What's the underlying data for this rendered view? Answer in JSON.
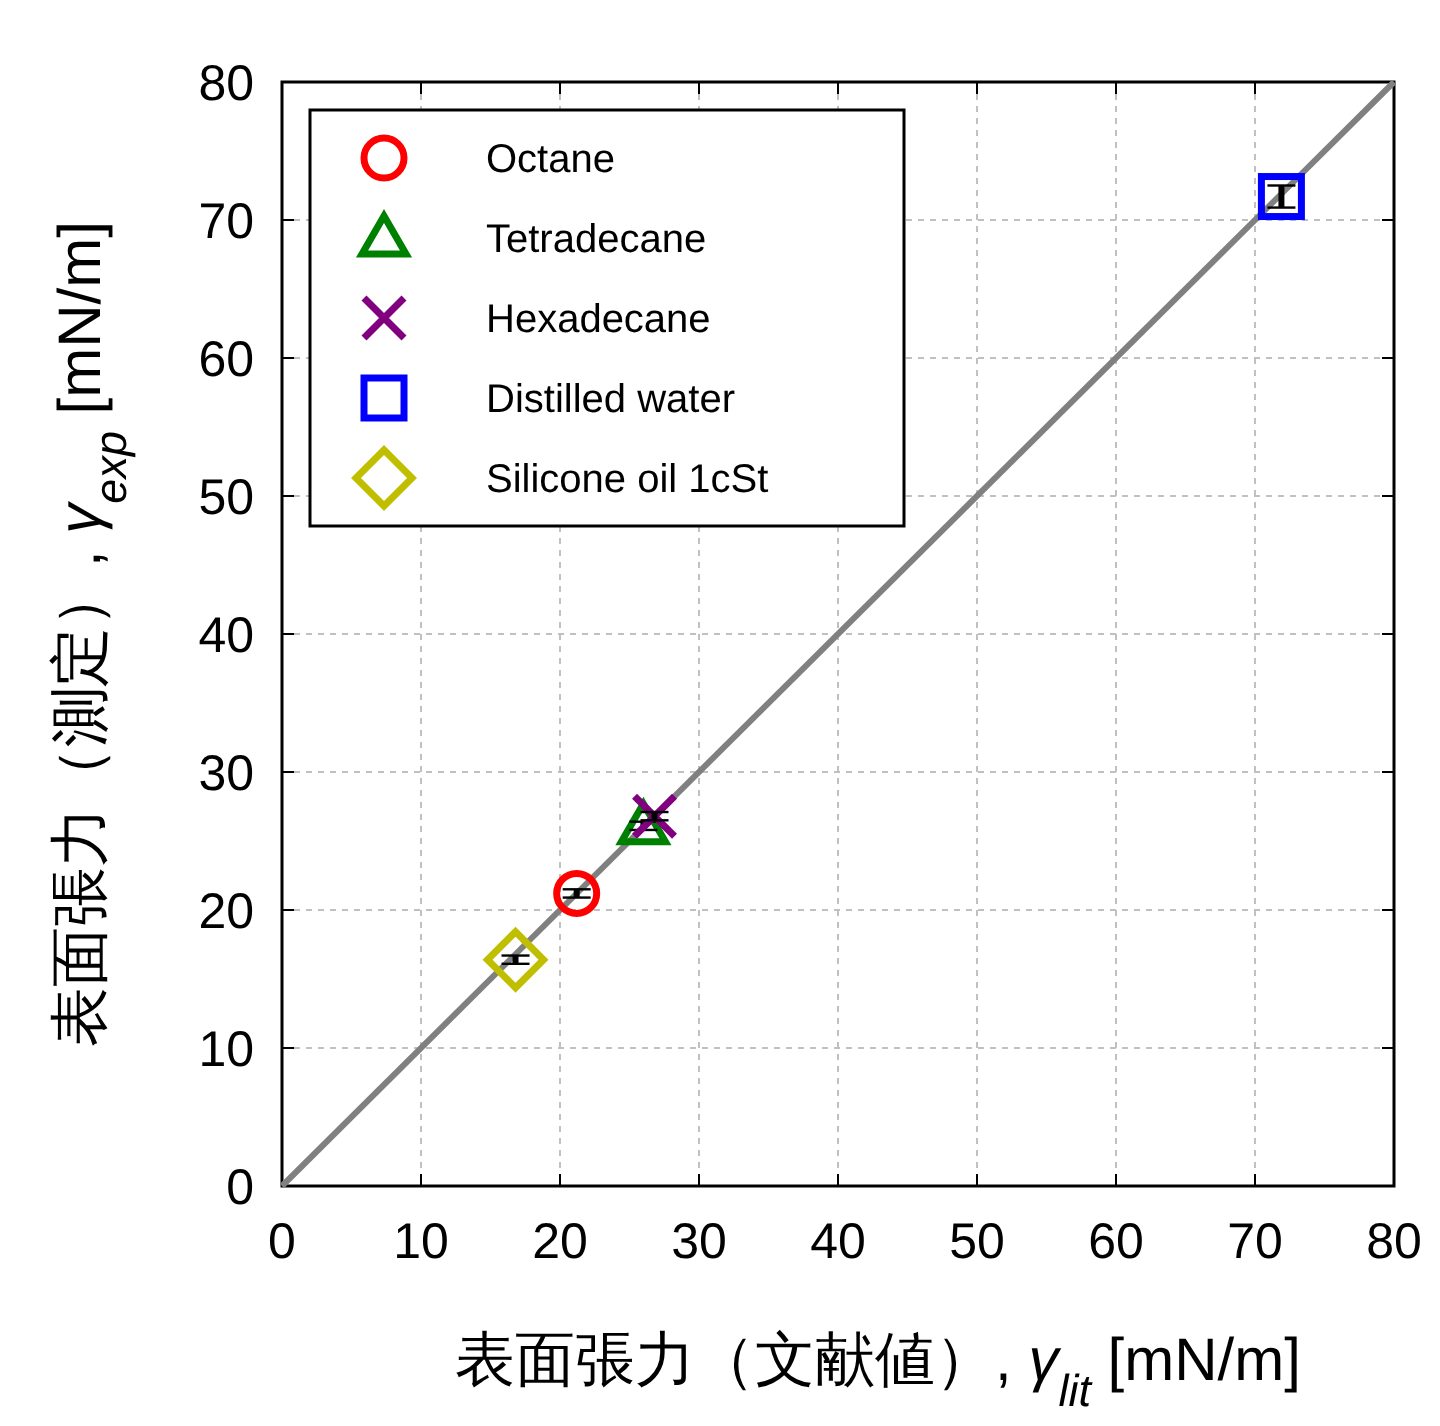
{
  "chart_data": {
    "type": "scatter",
    "xlabel": "表面張力（文献値）, *γ*$_{lit}$ [mN/m]",
    "ylabel": "表面張力（測定）, *γ*$_{exp}$ [mN/m]",
    "xlim": [
      0,
      80
    ],
    "ylim": [
      0,
      80
    ],
    "xticks": [
      0,
      10,
      20,
      30,
      40,
      50,
      60,
      70,
      80
    ],
    "yticks": [
      0,
      10,
      20,
      30,
      40,
      50,
      60,
      70,
      80
    ],
    "grid": true,
    "legend": "top left",
    "series": [
      {
        "type": "line",
        "color": "#808080",
        "x": [
          0,
          80
        ],
        "values": [
          0,
          80
        ],
        "marker": "none"
      },
      {
        "name": "Octane",
        "color": "#ff0000",
        "marker": "circle",
        "x": [
          21.2
        ],
        "values": [
          21.2
        ],
        "errors": [
          0.3
        ]
      },
      {
        "name": "Tetradecane",
        "color": "#008000",
        "marker": "triangle",
        "x": [
          26.0
        ],
        "values": [
          26.1
        ],
        "errors": [
          0.3
        ]
      },
      {
        "name": "Hexadecane",
        "color": "#800080",
        "marker": "cross",
        "x": [
          26.8
        ],
        "values": [
          26.8
        ],
        "errors": [
          0.3
        ]
      },
      {
        "name": "Distilled water",
        "color": "#0000ff",
        "marker": "square",
        "x": [
          71.9
        ],
        "values": [
          71.7
        ],
        "errors": [
          0.8
        ]
      },
      {
        "name": "Silicone oil 1cSt",
        "color": "#bfbf00",
        "marker": "diamond",
        "x": [
          16.8
        ],
        "values": [
          16.4
        ],
        "errors": [
          0.3
        ]
      }
    ]
  }
}
